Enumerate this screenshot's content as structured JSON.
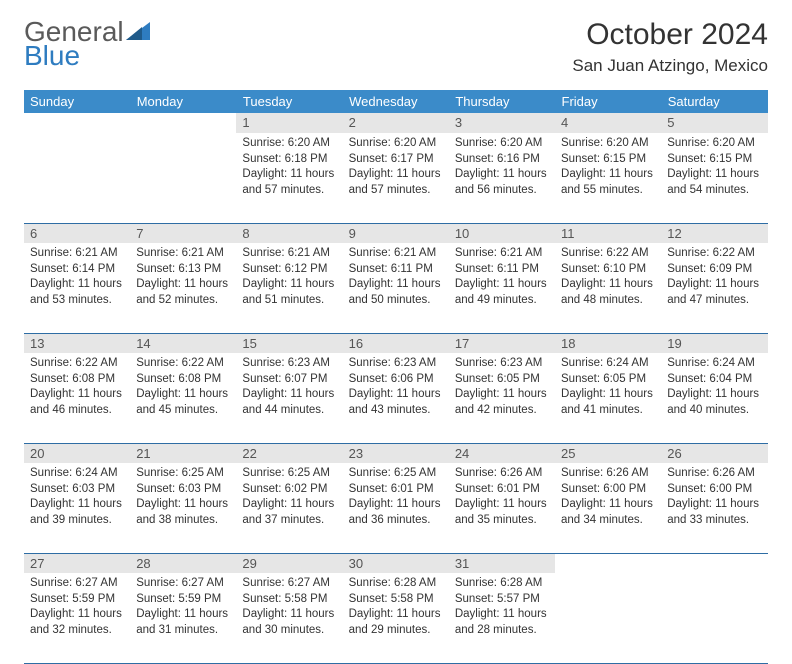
{
  "brand": {
    "part1": "General",
    "part2": "Blue"
  },
  "title": "October 2024",
  "location": "San Juan Atzingo, Mexico",
  "colors": {
    "header_bg": "#3b8bc9",
    "header_text": "#ffffff",
    "daynum_bg": "#e6e6e6",
    "rule": "#2e6da4",
    "logo_blue": "#2e7cc0",
    "text": "#333333"
  },
  "weekdays": [
    "Sunday",
    "Monday",
    "Tuesday",
    "Wednesday",
    "Thursday",
    "Friday",
    "Saturday"
  ],
  "weeks": [
    {
      "nums": [
        "",
        "",
        "1",
        "2",
        "3",
        "4",
        "5"
      ],
      "cells": [
        null,
        null,
        {
          "sunrise": "Sunrise: 6:20 AM",
          "sunset": "Sunset: 6:18 PM",
          "day1": "Daylight: 11 hours",
          "day2": "and 57 minutes."
        },
        {
          "sunrise": "Sunrise: 6:20 AM",
          "sunset": "Sunset: 6:17 PM",
          "day1": "Daylight: 11 hours",
          "day2": "and 57 minutes."
        },
        {
          "sunrise": "Sunrise: 6:20 AM",
          "sunset": "Sunset: 6:16 PM",
          "day1": "Daylight: 11 hours",
          "day2": "and 56 minutes."
        },
        {
          "sunrise": "Sunrise: 6:20 AM",
          "sunset": "Sunset: 6:15 PM",
          "day1": "Daylight: 11 hours",
          "day2": "and 55 minutes."
        },
        {
          "sunrise": "Sunrise: 6:20 AM",
          "sunset": "Sunset: 6:15 PM",
          "day1": "Daylight: 11 hours",
          "day2": "and 54 minutes."
        }
      ]
    },
    {
      "nums": [
        "6",
        "7",
        "8",
        "9",
        "10",
        "11",
        "12"
      ],
      "cells": [
        {
          "sunrise": "Sunrise: 6:21 AM",
          "sunset": "Sunset: 6:14 PM",
          "day1": "Daylight: 11 hours",
          "day2": "and 53 minutes."
        },
        {
          "sunrise": "Sunrise: 6:21 AM",
          "sunset": "Sunset: 6:13 PM",
          "day1": "Daylight: 11 hours",
          "day2": "and 52 minutes."
        },
        {
          "sunrise": "Sunrise: 6:21 AM",
          "sunset": "Sunset: 6:12 PM",
          "day1": "Daylight: 11 hours",
          "day2": "and 51 minutes."
        },
        {
          "sunrise": "Sunrise: 6:21 AM",
          "sunset": "Sunset: 6:11 PM",
          "day1": "Daylight: 11 hours",
          "day2": "and 50 minutes."
        },
        {
          "sunrise": "Sunrise: 6:21 AM",
          "sunset": "Sunset: 6:11 PM",
          "day1": "Daylight: 11 hours",
          "day2": "and 49 minutes."
        },
        {
          "sunrise": "Sunrise: 6:22 AM",
          "sunset": "Sunset: 6:10 PM",
          "day1": "Daylight: 11 hours",
          "day2": "and 48 minutes."
        },
        {
          "sunrise": "Sunrise: 6:22 AM",
          "sunset": "Sunset: 6:09 PM",
          "day1": "Daylight: 11 hours",
          "day2": "and 47 minutes."
        }
      ]
    },
    {
      "nums": [
        "13",
        "14",
        "15",
        "16",
        "17",
        "18",
        "19"
      ],
      "cells": [
        {
          "sunrise": "Sunrise: 6:22 AM",
          "sunset": "Sunset: 6:08 PM",
          "day1": "Daylight: 11 hours",
          "day2": "and 46 minutes."
        },
        {
          "sunrise": "Sunrise: 6:22 AM",
          "sunset": "Sunset: 6:08 PM",
          "day1": "Daylight: 11 hours",
          "day2": "and 45 minutes."
        },
        {
          "sunrise": "Sunrise: 6:23 AM",
          "sunset": "Sunset: 6:07 PM",
          "day1": "Daylight: 11 hours",
          "day2": "and 44 minutes."
        },
        {
          "sunrise": "Sunrise: 6:23 AM",
          "sunset": "Sunset: 6:06 PM",
          "day1": "Daylight: 11 hours",
          "day2": "and 43 minutes."
        },
        {
          "sunrise": "Sunrise: 6:23 AM",
          "sunset": "Sunset: 6:05 PM",
          "day1": "Daylight: 11 hours",
          "day2": "and 42 minutes."
        },
        {
          "sunrise": "Sunrise: 6:24 AM",
          "sunset": "Sunset: 6:05 PM",
          "day1": "Daylight: 11 hours",
          "day2": "and 41 minutes."
        },
        {
          "sunrise": "Sunrise: 6:24 AM",
          "sunset": "Sunset: 6:04 PM",
          "day1": "Daylight: 11 hours",
          "day2": "and 40 minutes."
        }
      ]
    },
    {
      "nums": [
        "20",
        "21",
        "22",
        "23",
        "24",
        "25",
        "26"
      ],
      "cells": [
        {
          "sunrise": "Sunrise: 6:24 AM",
          "sunset": "Sunset: 6:03 PM",
          "day1": "Daylight: 11 hours",
          "day2": "and 39 minutes."
        },
        {
          "sunrise": "Sunrise: 6:25 AM",
          "sunset": "Sunset: 6:03 PM",
          "day1": "Daylight: 11 hours",
          "day2": "and 38 minutes."
        },
        {
          "sunrise": "Sunrise: 6:25 AM",
          "sunset": "Sunset: 6:02 PM",
          "day1": "Daylight: 11 hours",
          "day2": "and 37 minutes."
        },
        {
          "sunrise": "Sunrise: 6:25 AM",
          "sunset": "Sunset: 6:01 PM",
          "day1": "Daylight: 11 hours",
          "day2": "and 36 minutes."
        },
        {
          "sunrise": "Sunrise: 6:26 AM",
          "sunset": "Sunset: 6:01 PM",
          "day1": "Daylight: 11 hours",
          "day2": "and 35 minutes."
        },
        {
          "sunrise": "Sunrise: 6:26 AM",
          "sunset": "Sunset: 6:00 PM",
          "day1": "Daylight: 11 hours",
          "day2": "and 34 minutes."
        },
        {
          "sunrise": "Sunrise: 6:26 AM",
          "sunset": "Sunset: 6:00 PM",
          "day1": "Daylight: 11 hours",
          "day2": "and 33 minutes."
        }
      ]
    },
    {
      "nums": [
        "27",
        "28",
        "29",
        "30",
        "31",
        "",
        ""
      ],
      "cells": [
        {
          "sunrise": "Sunrise: 6:27 AM",
          "sunset": "Sunset: 5:59 PM",
          "day1": "Daylight: 11 hours",
          "day2": "and 32 minutes."
        },
        {
          "sunrise": "Sunrise: 6:27 AM",
          "sunset": "Sunset: 5:59 PM",
          "day1": "Daylight: 11 hours",
          "day2": "and 31 minutes."
        },
        {
          "sunrise": "Sunrise: 6:27 AM",
          "sunset": "Sunset: 5:58 PM",
          "day1": "Daylight: 11 hours",
          "day2": "and 30 minutes."
        },
        {
          "sunrise": "Sunrise: 6:28 AM",
          "sunset": "Sunset: 5:58 PM",
          "day1": "Daylight: 11 hours",
          "day2": "and 29 minutes."
        },
        {
          "sunrise": "Sunrise: 6:28 AM",
          "sunset": "Sunset: 5:57 PM",
          "day1": "Daylight: 11 hours",
          "day2": "and 28 minutes."
        },
        null,
        null
      ]
    }
  ]
}
